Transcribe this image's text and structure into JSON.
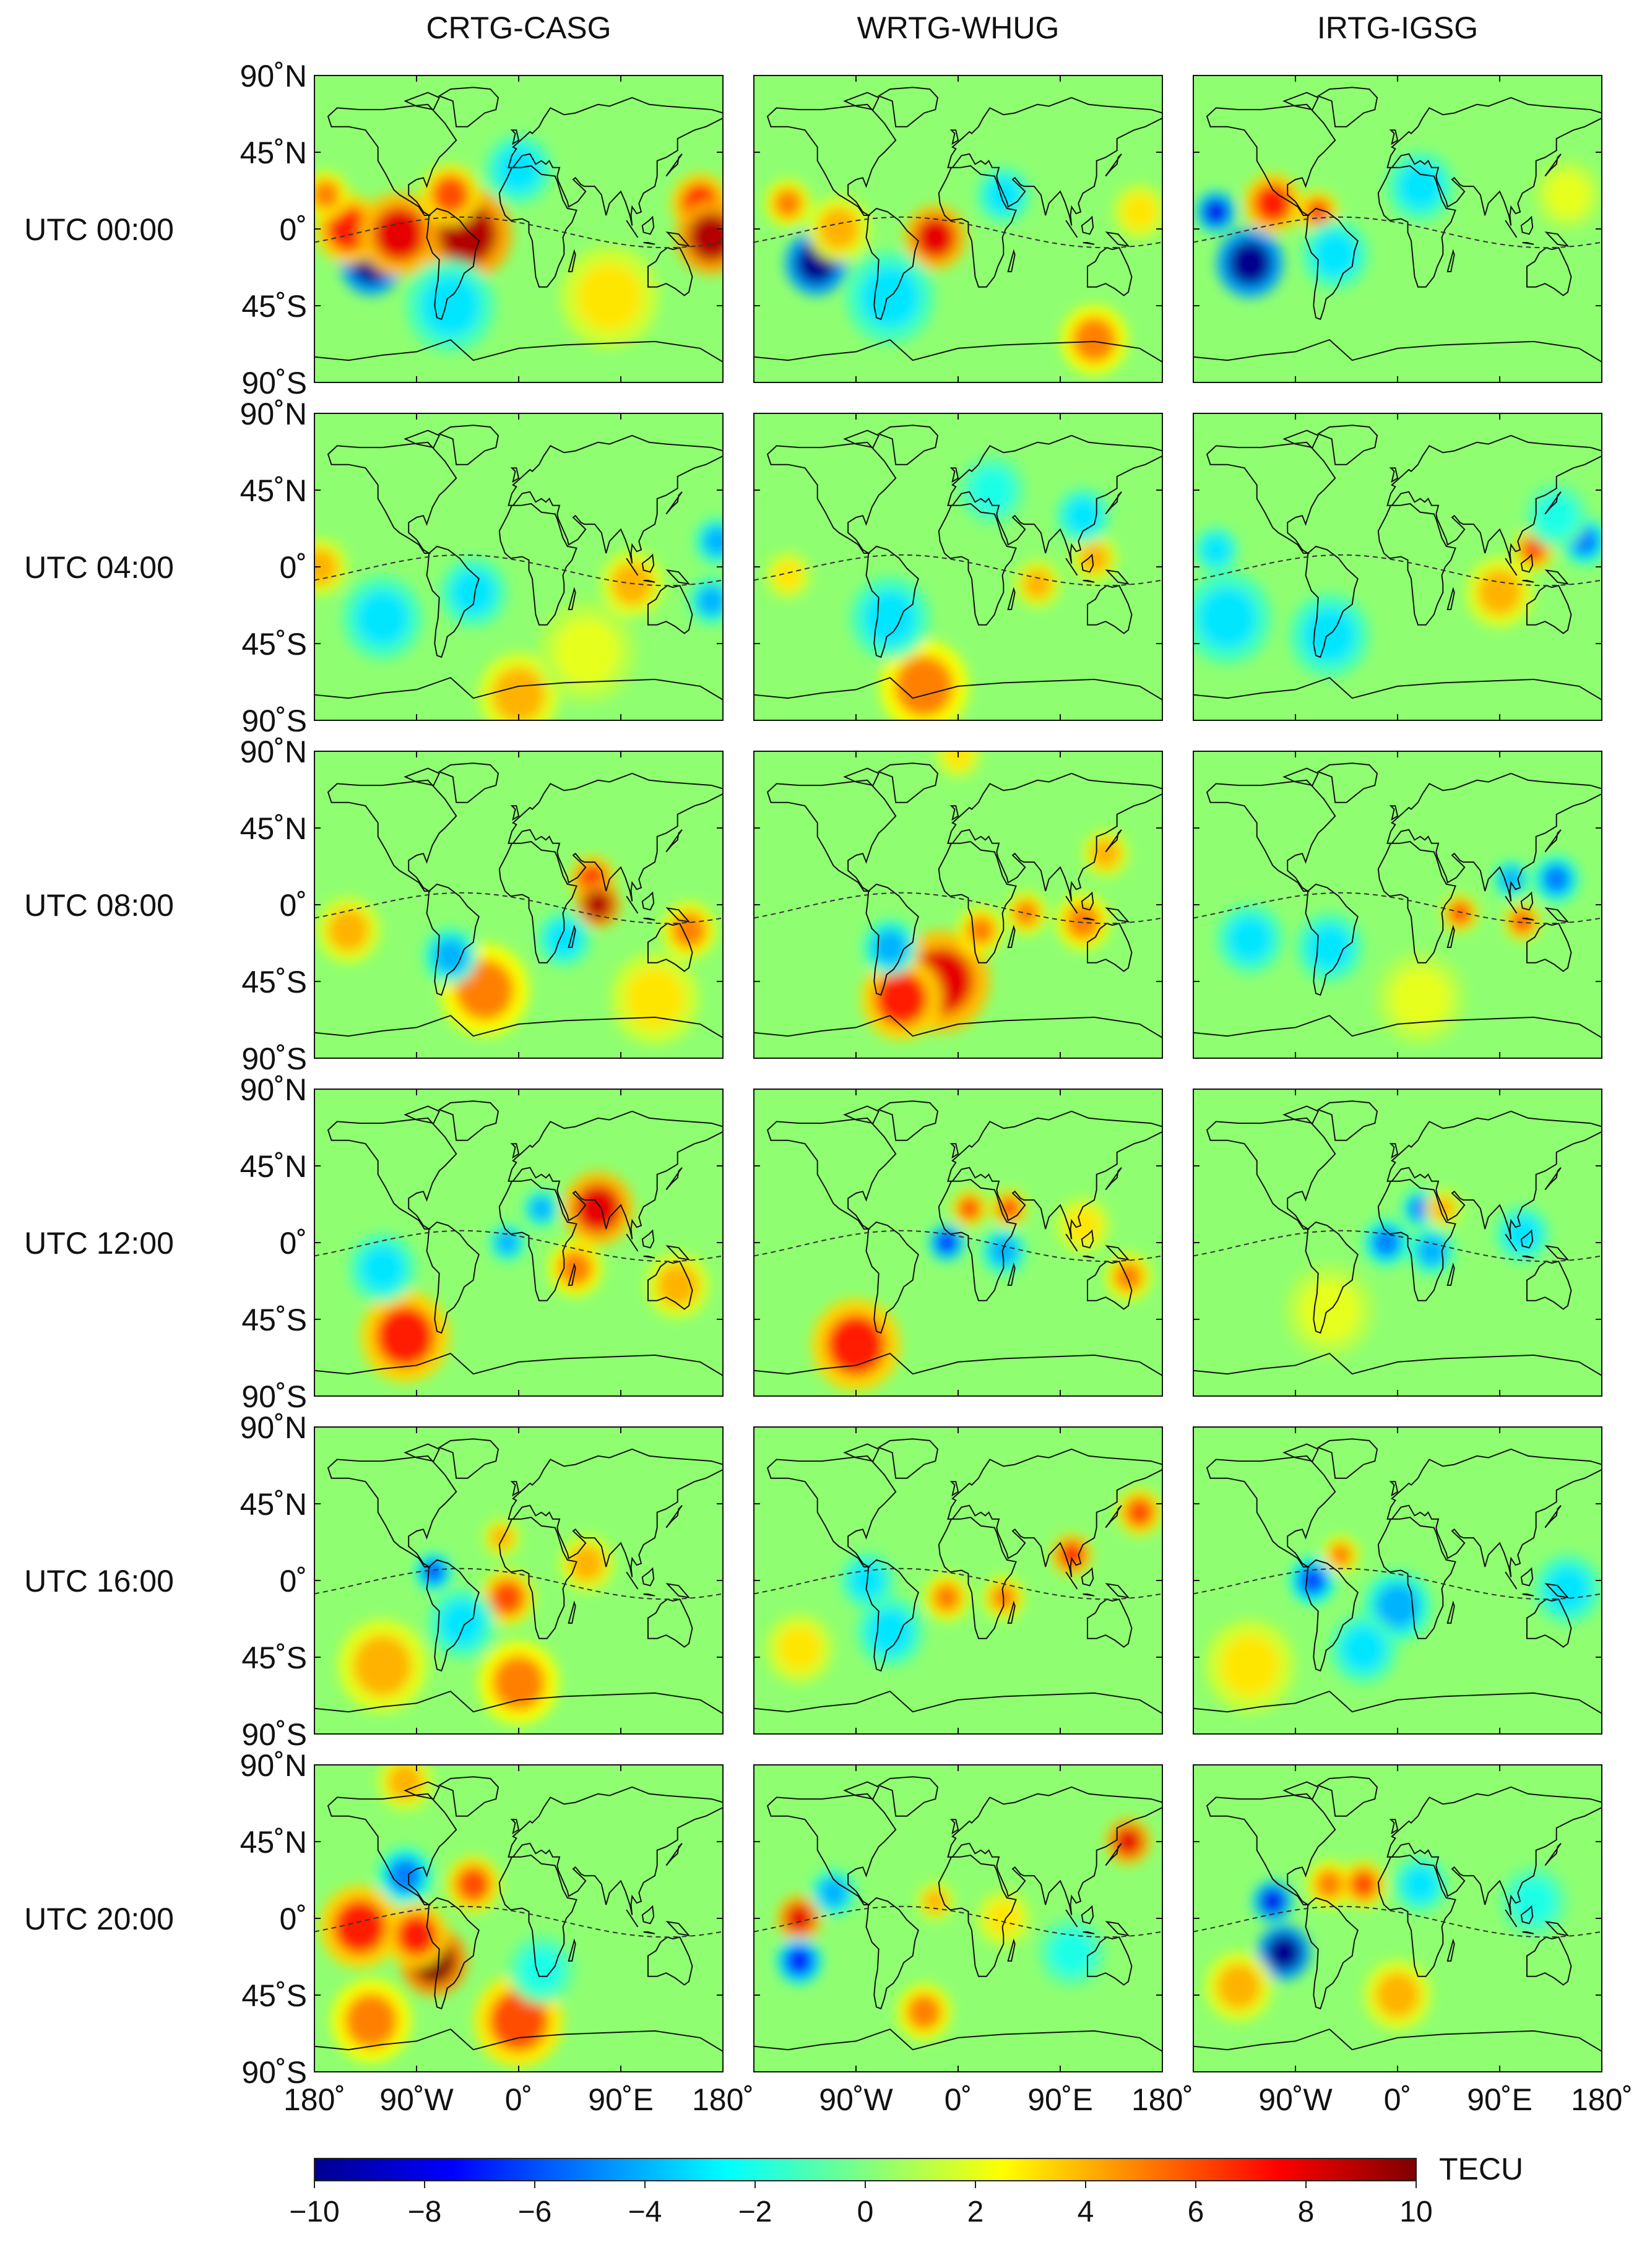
{
  "chart_data": {
    "type": "heatmap",
    "title": "",
    "units": "TECU",
    "colormap": "jet",
    "color_range": [
      -10,
      10
    ],
    "colorbar": {
      "label": "TECU",
      "ticks": [
        "−10",
        "−8",
        "−6",
        "−4",
        "−2",
        "0",
        "2",
        "4",
        "6",
        "8",
        "10"
      ],
      "colors": [
        "#00008f",
        "#0000ff",
        "#0080ff",
        "#00ffff",
        "#80ff80",
        "#ffff00",
        "#ff8000",
        "#ff0000",
        "#800000"
      ]
    },
    "columns": [
      "CRTG-CASG",
      "WRTG-WHUG",
      "IRTG-IGSG"
    ],
    "rows": [
      "UTC 00:00",
      "UTC 04:00",
      "UTC 08:00",
      "UTC 12:00",
      "UTC 16:00",
      "UTC 20:00"
    ],
    "y_ticks": [
      "90˚N",
      "45˚N",
      "0˚",
      "45˚S",
      "90˚S"
    ],
    "x_ticks": [
      [
        "180˚",
        "90˚W",
        "0˚",
        "90˚E",
        "180˚"
      ],
      [
        "90˚W",
        "0˚",
        "90˚E",
        "180˚"
      ],
      [
        "90˚W",
        "0˚",
        "90˚E",
        "180˚"
      ]
    ],
    "xlim": [
      -180,
      180
    ],
    "ylim": [
      -90,
      90
    ],
    "panels": [
      {
        "row": 0,
        "col": 0,
        "anomalies": [
          {
            "lon": -130,
            "lat": -20,
            "val": -10,
            "r": 14
          },
          {
            "lon": -150,
            "lat": 0,
            "val": 7,
            "r": 15
          },
          {
            "lon": -105,
            "lat": -3,
            "val": 8,
            "r": 18
          },
          {
            "lon": -45,
            "lat": -3,
            "val": 9,
            "r": 20
          },
          {
            "lon": -60,
            "lat": 20,
            "val": 6,
            "r": 13
          },
          {
            "lon": 160,
            "lat": 15,
            "val": 7,
            "r": 13
          },
          {
            "lon": 170,
            "lat": -5,
            "val": 9,
            "r": 16
          },
          {
            "lon": -170,
            "lat": 20,
            "val": 5,
            "r": 10
          },
          {
            "lon": -60,
            "lat": -45,
            "val": -3,
            "r": 20
          },
          {
            "lon": 0,
            "lat": 35,
            "val": -3,
            "r": 15
          },
          {
            "lon": 80,
            "lat": -40,
            "val": 3,
            "r": 22
          }
        ]
      },
      {
        "row": 0,
        "col": 1,
        "anomalies": [
          {
            "lon": -125,
            "lat": -20,
            "val": -10,
            "r": 14
          },
          {
            "lon": -150,
            "lat": 15,
            "val": 5,
            "r": 10
          },
          {
            "lon": -105,
            "lat": 0,
            "val": 4,
            "r": 14
          },
          {
            "lon": -20,
            "lat": -5,
            "val": 8,
            "r": 14
          },
          {
            "lon": -60,
            "lat": -40,
            "val": -3,
            "r": 20
          },
          {
            "lon": 120,
            "lat": -65,
            "val": 5,
            "r": 15
          },
          {
            "lon": 40,
            "lat": 20,
            "val": -3,
            "r": 12
          },
          {
            "lon": 160,
            "lat": 10,
            "val": 3,
            "r": 12
          }
        ]
      },
      {
        "row": 0,
        "col": 2,
        "anomalies": [
          {
            "lon": -130,
            "lat": -20,
            "val": -10,
            "r": 15
          },
          {
            "lon": -160,
            "lat": 10,
            "val": -8,
            "r": 9
          },
          {
            "lon": -110,
            "lat": 15,
            "val": 7,
            "r": 13
          },
          {
            "lon": -70,
            "lat": 10,
            "val": 6,
            "r": 9
          },
          {
            "lon": -55,
            "lat": -15,
            "val": -3,
            "r": 15
          },
          {
            "lon": 20,
            "lat": 25,
            "val": -3,
            "r": 15
          },
          {
            "lon": 150,
            "lat": 20,
            "val": 2,
            "r": 15
          }
        ]
      },
      {
        "row": 1,
        "col": 0,
        "anomalies": [
          {
            "lon": -175,
            "lat": 0,
            "val": 4,
            "r": 12
          },
          {
            "lon": -120,
            "lat": -30,
            "val": -3,
            "r": 18
          },
          {
            "lon": -40,
            "lat": -15,
            "val": -3,
            "r": 15
          },
          {
            "lon": 100,
            "lat": -10,
            "val": 4,
            "r": 14
          },
          {
            "lon": 175,
            "lat": 15,
            "val": -4,
            "r": 10
          },
          {
            "lon": 170,
            "lat": -20,
            "val": -4,
            "r": 10
          },
          {
            "lon": 0,
            "lat": -75,
            "val": 4,
            "r": 18
          },
          {
            "lon": 60,
            "lat": -50,
            "val": 2,
            "r": 22
          }
        ]
      },
      {
        "row": 1,
        "col": 1,
        "anomalies": [
          {
            "lon": -30,
            "lat": -70,
            "val": 5,
            "r": 20
          },
          {
            "lon": -150,
            "lat": -5,
            "val": 3,
            "r": 10
          },
          {
            "lon": 70,
            "lat": -10,
            "val": 4,
            "r": 10
          },
          {
            "lon": 120,
            "lat": 5,
            "val": 4,
            "r": 10
          },
          {
            "lon": -60,
            "lat": -30,
            "val": -3,
            "r": 18
          },
          {
            "lon": 110,
            "lat": 30,
            "val": -3,
            "r": 12
          },
          {
            "lon": 30,
            "lat": 45,
            "val": -2,
            "r": 15
          }
        ]
      },
      {
        "row": 1,
        "col": 2,
        "anomalies": [
          {
            "lon": 120,
            "lat": 10,
            "val": 6,
            "r": 9
          },
          {
            "lon": 165,
            "lat": 15,
            "val": -5,
            "r": 10
          },
          {
            "lon": 90,
            "lat": -15,
            "val": 4,
            "r": 15
          },
          {
            "lon": -150,
            "lat": -30,
            "val": -3,
            "r": 20
          },
          {
            "lon": -60,
            "lat": -40,
            "val": -3,
            "r": 18
          },
          {
            "lon": -160,
            "lat": 10,
            "val": -3,
            "r": 10
          },
          {
            "lon": 140,
            "lat": 30,
            "val": -2,
            "r": 14
          }
        ]
      },
      {
        "row": 2,
        "col": 0,
        "anomalies": [
          {
            "lon": 65,
            "lat": 15,
            "val": 7,
            "r": 10
          },
          {
            "lon": 70,
            "lat": 0,
            "val": 9,
            "r": 10
          },
          {
            "lon": 150,
            "lat": -15,
            "val": 5,
            "r": 12
          },
          {
            "lon": -30,
            "lat": -50,
            "val": 5,
            "r": 20
          },
          {
            "lon": -60,
            "lat": -30,
            "val": -4,
            "r": 12
          },
          {
            "lon": -150,
            "lat": -15,
            "val": 4,
            "r": 14
          },
          {
            "lon": 40,
            "lat": -20,
            "val": -3,
            "r": 12
          },
          {
            "lon": 120,
            "lat": -55,
            "val": 3,
            "r": 20
          }
        ]
      },
      {
        "row": 2,
        "col": 1,
        "anomalies": [
          {
            "lon": -15,
            "lat": -45,
            "val": 8,
            "r": 22
          },
          {
            "lon": -50,
            "lat": -55,
            "val": 7,
            "r": 18
          },
          {
            "lon": 20,
            "lat": -15,
            "val": 5,
            "r": 10
          },
          {
            "lon": 60,
            "lat": -5,
            "val": 5,
            "r": 9
          },
          {
            "lon": 110,
            "lat": -10,
            "val": 5,
            "r": 12
          },
          {
            "lon": -60,
            "lat": -25,
            "val": -4,
            "r": 12
          },
          {
            "lon": 0,
            "lat": 88,
            "val": 3,
            "r": 10
          },
          {
            "lon": 130,
            "lat": 30,
            "val": 4,
            "r": 10
          }
        ]
      },
      {
        "row": 2,
        "col": 2,
        "anomalies": [
          {
            "lon": 55,
            "lat": -5,
            "val": 6,
            "r": 8
          },
          {
            "lon": 110,
            "lat": -10,
            "val": 6,
            "r": 8
          },
          {
            "lon": 140,
            "lat": 15,
            "val": -5,
            "r": 10
          },
          {
            "lon": 100,
            "lat": 15,
            "val": -4,
            "r": 8
          },
          {
            "lon": -130,
            "lat": -20,
            "val": -3,
            "r": 15
          },
          {
            "lon": -60,
            "lat": -25,
            "val": -3,
            "r": 15
          },
          {
            "lon": 20,
            "lat": -55,
            "val": 2,
            "r": 20
          }
        ]
      },
      {
        "row": 3,
        "col": 0,
        "anomalies": [
          {
            "lon": 70,
            "lat": 20,
            "val": 8,
            "r": 16
          },
          {
            "lon": 20,
            "lat": 20,
            "val": -4,
            "r": 8
          },
          {
            "lon": -10,
            "lat": 0,
            "val": -4,
            "r": 8
          },
          {
            "lon": -100,
            "lat": -55,
            "val": 7,
            "r": 20
          },
          {
            "lon": 50,
            "lat": -15,
            "val": 5,
            "r": 12
          },
          {
            "lon": 140,
            "lat": -25,
            "val": 4,
            "r": 14
          },
          {
            "lon": -120,
            "lat": -15,
            "val": -3,
            "r": 15
          }
        ]
      },
      {
        "row": 3,
        "col": 1,
        "anomalies": [
          {
            "lon": -90,
            "lat": -60,
            "val": 7,
            "r": 20
          },
          {
            "lon": -10,
            "lat": 0,
            "val": -7,
            "r": 8
          },
          {
            "lon": 10,
            "lat": 20,
            "val": 6,
            "r": 8
          },
          {
            "lon": 45,
            "lat": 20,
            "val": 6,
            "r": 8
          },
          {
            "lon": 40,
            "lat": -5,
            "val": -4,
            "r": 10
          },
          {
            "lon": 150,
            "lat": -20,
            "val": 5,
            "r": 10
          },
          {
            "lon": 110,
            "lat": 10,
            "val": 3,
            "r": 12
          }
        ]
      },
      {
        "row": 3,
        "col": 2,
        "anomalies": [
          {
            "lon": -10,
            "lat": 0,
            "val": -5,
            "r": 10
          },
          {
            "lon": 20,
            "lat": 20,
            "val": -5,
            "r": 8
          },
          {
            "lon": 40,
            "lat": 20,
            "val": 4,
            "r": 8
          },
          {
            "lon": 30,
            "lat": -5,
            "val": -4,
            "r": 10
          },
          {
            "lon": -60,
            "lat": -40,
            "val": 2,
            "r": 20
          },
          {
            "lon": 110,
            "lat": 5,
            "val": -3,
            "r": 12
          }
        ]
      },
      {
        "row": 4,
        "col": 0,
        "anomalies": [
          {
            "lon": -75,
            "lat": 5,
            "val": -6,
            "r": 8
          },
          {
            "lon": -10,
            "lat": -10,
            "val": 6,
            "r": 12
          },
          {
            "lon": -120,
            "lat": -50,
            "val": 4,
            "r": 20
          },
          {
            "lon": 0,
            "lat": -60,
            "val": 5,
            "r": 18
          },
          {
            "lon": 60,
            "lat": 10,
            "val": 4,
            "r": 12
          },
          {
            "lon": -50,
            "lat": -25,
            "val": -3,
            "r": 15
          },
          {
            "lon": -15,
            "lat": 25,
            "val": 4,
            "r": 8
          }
        ]
      },
      {
        "row": 4,
        "col": 1,
        "anomalies": [
          {
            "lon": 100,
            "lat": 15,
            "val": 7,
            "r": 9
          },
          {
            "lon": 160,
            "lat": 40,
            "val": 6,
            "r": 10
          },
          {
            "lon": -10,
            "lat": -10,
            "val": 5,
            "r": 10
          },
          {
            "lon": 40,
            "lat": -10,
            "val": 5,
            "r": 9
          },
          {
            "lon": -80,
            "lat": 0,
            "val": -3,
            "r": 12
          },
          {
            "lon": -60,
            "lat": -30,
            "val": -3,
            "r": 15
          },
          {
            "lon": -140,
            "lat": -40,
            "val": 3,
            "r": 15
          }
        ]
      },
      {
        "row": 4,
        "col": 2,
        "anomalies": [
          {
            "lon": -75,
            "lat": 0,
            "val": -6,
            "r": 10
          },
          {
            "lon": -50,
            "lat": 15,
            "val": 5,
            "r": 8
          },
          {
            "lon": 0,
            "lat": -15,
            "val": -4,
            "r": 15
          },
          {
            "lon": -30,
            "lat": -40,
            "val": -3,
            "r": 15
          },
          {
            "lon": 150,
            "lat": -5,
            "val": -3,
            "r": 15
          },
          {
            "lon": -130,
            "lat": -50,
            "val": 3,
            "r": 20
          }
        ]
      },
      {
        "row": 5,
        "col": 0,
        "anomalies": [
          {
            "lon": -75,
            "lat": -25,
            "val": 10,
            "r": 15
          },
          {
            "lon": -140,
            "lat": -5,
            "val": 7,
            "r": 18
          },
          {
            "lon": -90,
            "lat": -10,
            "val": 7,
            "r": 14
          },
          {
            "lon": -40,
            "lat": 20,
            "val": 6,
            "r": 12
          },
          {
            "lon": -100,
            "lat": 25,
            "val": -5,
            "r": 12
          },
          {
            "lon": 0,
            "lat": -60,
            "val": 6,
            "r": 20
          },
          {
            "lon": -130,
            "lat": -60,
            "val": 5,
            "r": 18
          },
          {
            "lon": -100,
            "lat": 80,
            "val": 4,
            "r": 12
          },
          {
            "lon": 20,
            "lat": -30,
            "val": -2,
            "r": 15
          }
        ]
      },
      {
        "row": 5,
        "col": 1,
        "anomalies": [
          {
            "lon": -140,
            "lat": 0,
            "val": 8,
            "r": 10
          },
          {
            "lon": -140,
            "lat": -25,
            "val": -7,
            "r": 10
          },
          {
            "lon": -110,
            "lat": 15,
            "val": -4,
            "r": 10
          },
          {
            "lon": 150,
            "lat": 45,
            "val": 8,
            "r": 10
          },
          {
            "lon": -30,
            "lat": -55,
            "val": 5,
            "r": 12
          },
          {
            "lon": -20,
            "lat": 10,
            "val": 4,
            "r": 8
          },
          {
            "lon": 40,
            "lat": 0,
            "val": 3,
            "r": 12
          },
          {
            "lon": 100,
            "lat": -20,
            "val": -2,
            "r": 15
          }
        ]
      },
      {
        "row": 5,
        "col": 2,
        "anomalies": [
          {
            "lon": -100,
            "lat": -20,
            "val": -10,
            "r": 12
          },
          {
            "lon": -110,
            "lat": 10,
            "val": -8,
            "r": 9
          },
          {
            "lon": -60,
            "lat": 20,
            "val": 5,
            "r": 10
          },
          {
            "lon": -30,
            "lat": 20,
            "val": 6,
            "r": 10
          },
          {
            "lon": -140,
            "lat": -40,
            "val": 4,
            "r": 15
          },
          {
            "lon": 0,
            "lat": -45,
            "val": 4,
            "r": 15
          },
          {
            "lon": 20,
            "lat": 20,
            "val": -3,
            "r": 12
          },
          {
            "lon": 120,
            "lat": 10,
            "val": -2,
            "r": 15
          }
        ]
      }
    ]
  }
}
